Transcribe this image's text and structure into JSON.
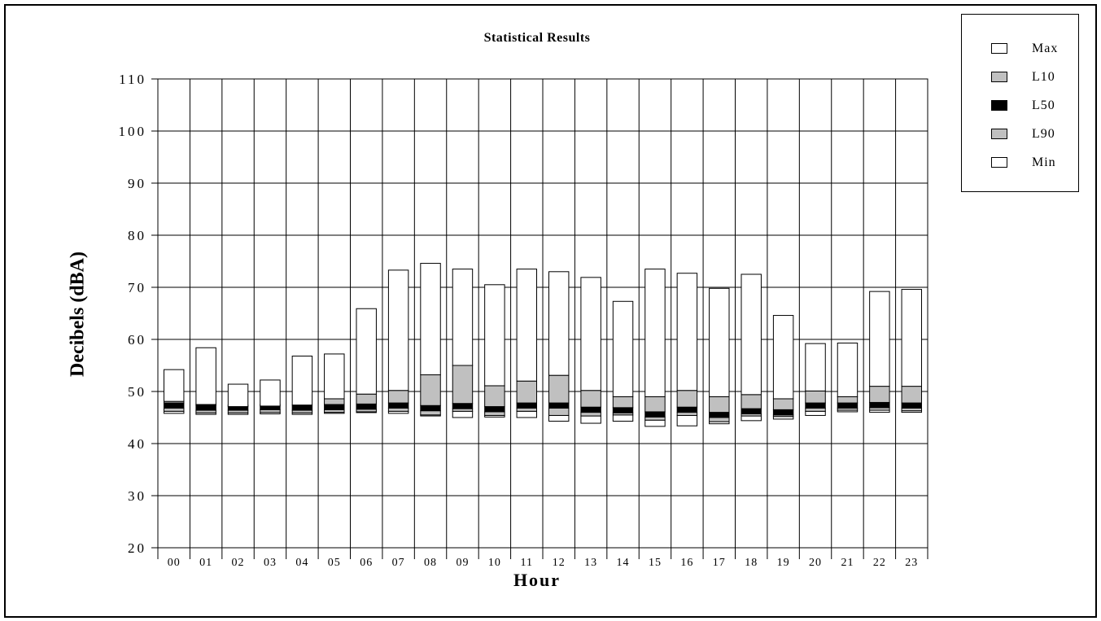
{
  "chart_data": {
    "type": "bar",
    "title": "Statistical Results",
    "xlabel": "Hour",
    "ylabel": "Decibels (dBA)",
    "ylim": [
      20,
      110
    ],
    "yticks": [
      "20",
      "30",
      "40",
      "50",
      "60",
      "70",
      "80",
      "90",
      "100",
      "110"
    ],
    "categories": [
      "00",
      "01",
      "02",
      "03",
      "04",
      "05",
      "06",
      "07",
      "08",
      "09",
      "10",
      "11",
      "12",
      "13",
      "14",
      "15",
      "16",
      "17",
      "18",
      "19",
      "20",
      "21",
      "22",
      "23"
    ],
    "series": [
      {
        "name": "Max",
        "color": "#ffffff",
        "values": [
          54.2,
          58.4,
          51.4,
          52.2,
          56.8,
          57.2,
          65.9,
          73.3,
          74.6,
          73.5,
          70.5,
          73.5,
          73.0,
          71.9,
          67.3,
          73.5,
          72.7,
          69.8,
          72.5,
          64.6,
          59.2,
          59.3,
          69.2,
          69.6
        ]
      },
      {
        "name": "L10",
        "color": "#c0c0c0",
        "values": [
          48.1,
          47.5,
          47.1,
          47.2,
          47.4,
          48.6,
          49.5,
          50.2,
          53.2,
          55.0,
          51.1,
          52.0,
          53.1,
          50.2,
          49.0,
          49.0,
          50.2,
          49.0,
          49.4,
          48.6,
          50.1,
          49.0,
          51.0,
          51.0
        ]
      },
      {
        "name": "L50",
        "color": "#000000",
        "values": [
          47.3,
          46.9,
          46.9,
          47.0,
          46.9,
          47.0,
          47.1,
          47.3,
          46.8,
          47.2,
          46.6,
          47.3,
          47.3,
          46.5,
          46.4,
          45.6,
          46.5,
          45.5,
          46.2,
          46.0,
          47.3,
          47.3,
          47.4,
          47.3
        ]
      },
      {
        "name": "L90",
        "color": "#c0c0c0",
        "values": [
          46.2,
          45.9,
          45.9,
          46.0,
          45.9,
          46.0,
          46.1,
          46.2,
          45.5,
          46.2,
          45.4,
          46.2,
          45.4,
          45.3,
          45.5,
          44.5,
          45.4,
          44.2,
          45.3,
          45.2,
          46.2,
          46.4,
          46.4,
          46.3
        ]
      },
      {
        "name": "Min",
        "color": "#ffffff",
        "values": [
          45.8,
          45.6,
          45.6,
          45.7,
          45.6,
          45.8,
          46.0,
          45.8,
          45.3,
          45.0,
          45.1,
          45.0,
          44.3,
          43.9,
          44.3,
          43.3,
          43.4,
          43.8,
          44.4,
          44.7,
          45.4,
          46.1,
          46.0,
          46.0
        ]
      }
    ],
    "grid": true,
    "legend_position": "top-right"
  }
}
